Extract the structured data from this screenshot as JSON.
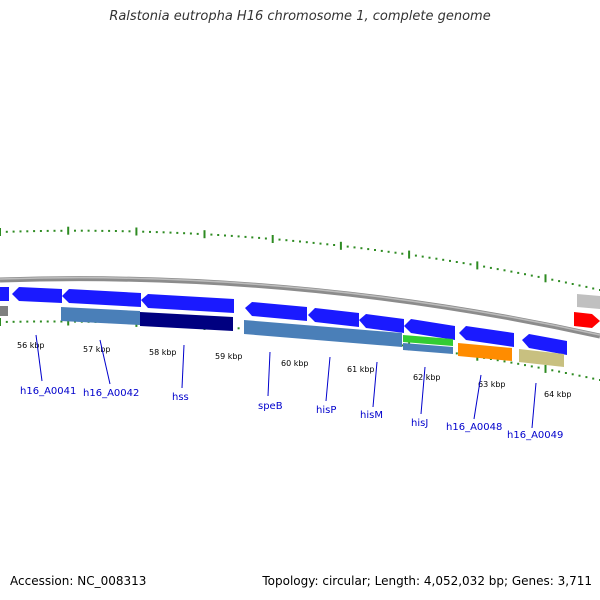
{
  "title": "Ralstonia eutropha H16 chromosome 1, complete genome",
  "footer": {
    "accession": "Accession: NC_008313",
    "summary": "Topology: circular; Length: 4,052,032 bp; Genes: 3,711"
  },
  "colors": {
    "gene_blue": "#1a1aff",
    "backbone": "#8c8c8c",
    "tick_green": "#2e8b22",
    "label_blue": "#0000cc",
    "steelblue": "#4a7fb8",
    "navy": "#000080",
    "green": "#33cc33",
    "orange": "#ff8c00",
    "khaki": "#c8c080",
    "silver": "#c0c0c0",
    "red": "#ff0000"
  },
  "kbp_labels": [
    "56 kbp",
    "57 kbp",
    "58 kbp",
    "59 kbp",
    "60 kbp",
    "61 kbp",
    "62 kbp",
    "63 kbp",
    "64 kbp"
  ],
  "gene_labels": [
    "h16_A0041",
    "h16_A0042",
    "hss",
    "speB",
    "hisP",
    "hisM",
    "hisJ",
    "h16_A0048",
    "h16_A0049"
  ]
}
